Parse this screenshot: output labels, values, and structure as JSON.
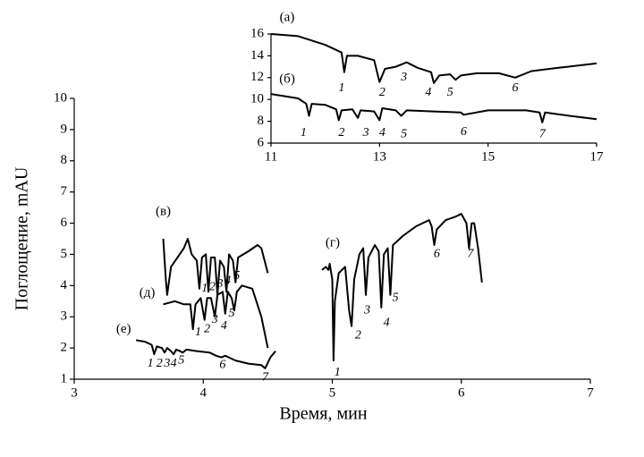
{
  "chart_data": [
    {
      "type": "line",
      "xlabel": "Время, мин",
      "ylabel": "Поглощение, mAU",
      "xlim": [
        3,
        7
      ],
      "xticks": [
        3,
        4,
        5,
        6,
        7
      ],
      "ylim": [
        1,
        10
      ],
      "yticks": [
        1,
        2,
        3,
        4,
        5,
        6,
        7,
        8,
        9,
        10
      ],
      "color": "#000000",
      "series": [
        {
          "name": "(в)",
          "x": [
            3.69,
            3.71,
            3.72,
            3.75,
            3.8,
            3.85,
            3.88,
            3.91,
            3.95,
            3.97,
            3.99,
            4.02,
            4.04,
            4.06,
            4.09,
            4.11,
            4.13,
            4.16,
            4.18,
            4.2,
            4.23,
            4.25,
            4.27,
            4.35,
            4.42,
            4.45,
            4.5
          ],
          "values": [
            5.5,
            4.2,
            3.7,
            4.6,
            4.9,
            5.2,
            5.5,
            5.0,
            4.8,
            3.9,
            4.9,
            5.0,
            3.8,
            4.9,
            4.9,
            3.7,
            4.8,
            4.6,
            3.8,
            5.0,
            4.8,
            4.1,
            4.9,
            5.1,
            5.3,
            5.2,
            4.4
          ]
        },
        {
          "name": "(д)",
          "x": [
            3.69,
            3.78,
            3.85,
            3.9,
            3.92,
            3.94,
            3.98,
            4.01,
            4.03,
            4.06,
            4.09,
            4.11,
            4.15,
            4.17,
            4.19,
            4.22,
            4.24,
            4.26,
            4.3,
            4.38,
            4.45,
            4.5
          ],
          "values": [
            3.4,
            3.5,
            3.4,
            3.4,
            2.6,
            3.4,
            3.6,
            2.9,
            3.6,
            3.6,
            3.0,
            3.7,
            3.8,
            3.1,
            3.8,
            3.6,
            3.2,
            3.8,
            4.0,
            3.9,
            3.0,
            2.0
          ]
        },
        {
          "name": "(е)",
          "x": [
            3.48,
            3.55,
            3.6,
            3.62,
            3.64,
            3.68,
            3.7,
            3.72,
            3.75,
            3.77,
            3.79,
            3.82,
            3.84,
            3.87,
            3.95,
            4.05,
            4.1,
            4.14,
            4.17,
            4.25,
            4.35,
            4.45,
            4.48,
            4.52,
            4.56
          ],
          "values": [
            2.25,
            2.2,
            2.1,
            1.8,
            2.05,
            2.0,
            1.85,
            2.0,
            1.9,
            1.8,
            1.95,
            1.9,
            1.85,
            1.95,
            1.9,
            1.85,
            1.75,
            1.7,
            1.75,
            1.6,
            1.5,
            1.45,
            1.35,
            1.7,
            1.9
          ]
        },
        {
          "name": "(г)",
          "x": [
            4.92,
            4.95,
            4.97,
            4.98,
            5.0,
            5.01,
            5.02,
            5.05,
            5.1,
            5.13,
            5.15,
            5.17,
            5.21,
            5.24,
            5.26,
            5.28,
            5.33,
            5.36,
            5.38,
            5.4,
            5.43,
            5.45,
            5.47,
            5.55,
            5.65,
            5.75,
            5.77,
            5.79,
            5.81,
            5.88,
            5.95,
            6.0,
            6.04,
            6.06,
            6.08,
            6.1,
            6.13,
            6.16
          ],
          "values": [
            4.5,
            4.6,
            4.5,
            4.7,
            4.2,
            1.6,
            3.5,
            4.4,
            4.6,
            3.2,
            2.7,
            4.2,
            5.0,
            5.2,
            3.7,
            4.9,
            5.3,
            5.1,
            3.3,
            5.0,
            5.2,
            3.7,
            5.3,
            5.6,
            5.9,
            6.1,
            5.9,
            5.3,
            5.8,
            6.1,
            6.2,
            6.3,
            6.0,
            5.2,
            6.0,
            6.0,
            5.2,
            4.1
          ]
        }
      ],
      "annotations": [
        {
          "text": "1",
          "x": 4.01,
          "y": 3.9
        },
        {
          "text": "2",
          "x": 4.07,
          "y": 3.95
        },
        {
          "text": "3",
          "x": 4.13,
          "y": 4.05
        },
        {
          "text": "4",
          "x": 4.19,
          "y": 4.15
        },
        {
          "text": "5",
          "x": 4.26,
          "y": 4.3
        },
        {
          "text": "1",
          "x": 3.96,
          "y": 2.5
        },
        {
          "text": "2",
          "x": 4.03,
          "y": 2.6
        },
        {
          "text": "3",
          "x": 4.09,
          "y": 2.9
        },
        {
          "text": "4",
          "x": 4.16,
          "y": 2.7
        },
        {
          "text": "5",
          "x": 4.22,
          "y": 3.1
        },
        {
          "text": "1",
          "x": 3.59,
          "y": 1.5
        },
        {
          "text": "2",
          "x": 3.66,
          "y": 1.5
        },
        {
          "text": "3",
          "x": 3.72,
          "y": 1.5
        },
        {
          "text": "4",
          "x": 3.77,
          "y": 1.5
        },
        {
          "text": "5",
          "x": 3.83,
          "y": 1.6
        },
        {
          "text": "6",
          "x": 4.15,
          "y": 1.45
        },
        {
          "text": "7",
          "x": 4.48,
          "y": 1.05
        },
        {
          "text": "1",
          "x": 5.04,
          "y": 1.2
        },
        {
          "text": "2",
          "x": 5.2,
          "y": 2.4
        },
        {
          "text": "3",
          "x": 5.27,
          "y": 3.2
        },
        {
          "text": "4",
          "x": 5.42,
          "y": 2.8
        },
        {
          "text": "5",
          "x": 5.49,
          "y": 3.6
        },
        {
          "text": "6",
          "x": 5.81,
          "y": 5.0
        },
        {
          "text": "7",
          "x": 6.07,
          "y": 5.0
        }
      ]
    },
    {
      "type": "line",
      "xlim": [
        11,
        17
      ],
      "xticks": [
        11,
        13,
        15,
        17
      ],
      "ylim": [
        6,
        16
      ],
      "yticks": [
        6,
        8,
        10,
        12,
        14,
        16
      ],
      "color": "#000000",
      "series": [
        {
          "name": "(а)",
          "x": [
            11.0,
            11.5,
            12.0,
            12.3,
            12.35,
            12.4,
            12.6,
            12.9,
            13.0,
            13.1,
            13.3,
            13.5,
            13.7,
            13.95,
            14.0,
            14.1,
            14.3,
            14.4,
            14.5,
            14.8,
            15.2,
            15.5,
            15.8,
            16.3,
            17.0
          ],
          "values": [
            16.0,
            15.8,
            15.0,
            14.3,
            12.5,
            14.0,
            14.0,
            13.6,
            11.6,
            12.8,
            13.0,
            13.4,
            12.9,
            12.5,
            11.5,
            12.2,
            12.3,
            11.8,
            12.2,
            12.4,
            12.4,
            12.0,
            12.6,
            12.9,
            13.3
          ]
        },
        {
          "name": "(б)",
          "x": [
            11.0,
            11.5,
            11.65,
            11.7,
            11.75,
            12.0,
            12.2,
            12.25,
            12.3,
            12.5,
            12.6,
            12.65,
            12.9,
            13.0,
            13.05,
            13.3,
            13.4,
            13.5,
            14.0,
            14.5,
            14.55,
            15.0,
            15.7,
            15.95,
            16.0,
            16.05,
            16.5,
            17.0
          ],
          "values": [
            10.5,
            10.1,
            9.6,
            8.5,
            9.6,
            9.5,
            9.1,
            8.1,
            9.0,
            9.1,
            8.3,
            9.0,
            8.9,
            8.1,
            9.2,
            9.0,
            8.5,
            9.0,
            8.9,
            8.8,
            8.6,
            9.0,
            9.0,
            8.8,
            7.9,
            8.8,
            8.5,
            8.2
          ]
        }
      ],
      "annotations": [
        {
          "text": "1",
          "x": 12.3,
          "y": 11.0
        },
        {
          "text": "2",
          "x": 13.05,
          "y": 10.6
        },
        {
          "text": "3",
          "x": 13.45,
          "y": 12.0
        },
        {
          "text": "4",
          "x": 13.9,
          "y": 10.6
        },
        {
          "text": "5",
          "x": 14.3,
          "y": 10.6
        },
        {
          "text": "6",
          "x": 15.5,
          "y": 11.0
        },
        {
          "text": "1",
          "x": 11.6,
          "y": 6.9
        },
        {
          "text": "2",
          "x": 12.3,
          "y": 6.9
        },
        {
          "text": "3",
          "x": 12.75,
          "y": 6.9
        },
        {
          "text": "4",
          "x": 13.05,
          "y": 6.9
        },
        {
          "text": "5",
          "x": 13.45,
          "y": 6.8
        },
        {
          "text": "6",
          "x": 14.55,
          "y": 7.0
        },
        {
          "text": "7",
          "x": 16.0,
          "y": 6.8
        }
      ]
    }
  ]
}
